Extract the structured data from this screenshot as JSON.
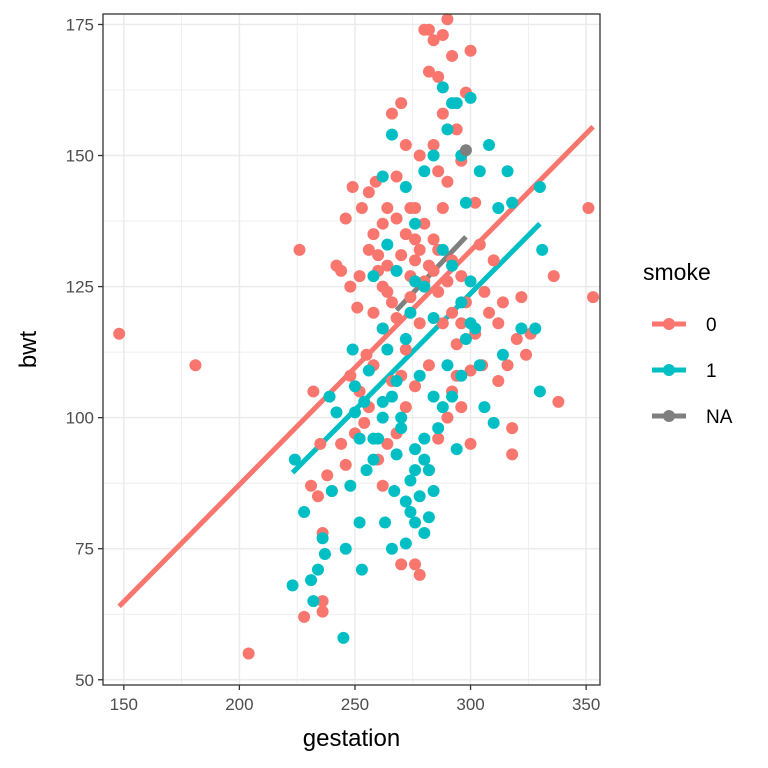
{
  "chart_data": {
    "type": "scatter",
    "xlabel": "gestation",
    "ylabel": "bwt",
    "xlim": [
      141,
      356
    ],
    "ylim": [
      49,
      177
    ],
    "x_ticks": [
      150,
      200,
      250,
      300,
      350
    ],
    "y_ticks": [
      50,
      75,
      100,
      125,
      150,
      175
    ],
    "x_tick_labels": [
      "150",
      "200",
      "250",
      "300",
      "350"
    ],
    "y_tick_labels": [
      "50",
      "75",
      "100",
      "125",
      "150",
      "175"
    ],
    "grid": true,
    "legend": {
      "title": "smoke",
      "position": "right",
      "entries": [
        {
          "label": "0",
          "color": "#F8766D"
        },
        {
          "label": "1",
          "color": "#00BFC4"
        },
        {
          "label": "NA",
          "color": "#7F7F7F"
        }
      ]
    },
    "series": [
      {
        "name": "0",
        "color": "#F8766D",
        "points": [
          [
            148,
            116
          ],
          [
            181,
            110
          ],
          [
            204,
            55
          ],
          [
            226,
            132
          ],
          [
            228,
            62
          ],
          [
            232,
            105
          ],
          [
            234,
            85
          ],
          [
            236,
            78
          ],
          [
            236,
            65
          ],
          [
            236,
            63
          ],
          [
            231,
            87
          ],
          [
            238,
            89
          ],
          [
            242,
            129
          ],
          [
            244,
            128
          ],
          [
            246,
            138
          ],
          [
            248,
            125
          ],
          [
            249,
            144
          ],
          [
            251,
            121
          ],
          [
            253,
            140
          ],
          [
            255,
            112
          ],
          [
            256,
            143
          ],
          [
            258,
            135
          ],
          [
            259,
            145
          ],
          [
            260,
            131
          ],
          [
            262,
            137
          ],
          [
            264,
            129
          ],
          [
            266,
            158
          ],
          [
            268,
            146
          ],
          [
            270,
            160
          ],
          [
            272,
            152
          ],
          [
            274,
            140
          ],
          [
            276,
            134
          ],
          [
            278,
            150
          ],
          [
            280,
            174
          ],
          [
            282,
            174
          ],
          [
            284,
            172
          ],
          [
            286,
            165
          ],
          [
            288,
            173
          ],
          [
            290,
            176
          ],
          [
            292,
            169
          ],
          [
            294,
            155
          ],
          [
            296,
            149
          ],
          [
            298,
            162
          ],
          [
            300,
            170
          ],
          [
            302,
            141
          ],
          [
            304,
            133
          ],
          [
            306,
            124
          ],
          [
            308,
            120
          ],
          [
            310,
            130
          ],
          [
            312,
            118
          ],
          [
            314,
            122
          ],
          [
            316,
            110
          ],
          [
            318,
            98
          ],
          [
            320,
            115
          ],
          [
            322,
            123
          ],
          [
            324,
            112
          ],
          [
            326,
            116
          ],
          [
            336,
            127
          ],
          [
            338,
            103
          ],
          [
            351,
            140
          ],
          [
            353,
            123
          ],
          [
            318,
            93
          ],
          [
            312,
            107
          ],
          [
            305,
            110
          ],
          [
            300,
            109
          ],
          [
            298,
            122
          ],
          [
            296,
            127
          ],
          [
            294,
            114
          ],
          [
            292,
            130
          ],
          [
            290,
            126
          ],
          [
            288,
            140
          ],
          [
            286,
            147
          ],
          [
            284,
            134
          ],
          [
            282,
            129
          ],
          [
            280,
            137
          ],
          [
            278,
            118
          ],
          [
            276,
            130
          ],
          [
            274,
            123
          ],
          [
            272,
            113
          ],
          [
            270,
            108
          ],
          [
            268,
            119
          ],
          [
            266,
            107
          ],
          [
            264,
            124
          ],
          [
            262,
            117
          ],
          [
            260,
            128
          ],
          [
            258,
            110
          ],
          [
            256,
            102
          ],
          [
            254,
            99
          ],
          [
            252,
            105
          ],
          [
            250,
            97
          ],
          [
            248,
            108
          ],
          [
            246,
            91
          ],
          [
            244,
            95
          ],
          [
            240,
            86
          ],
          [
            235,
            95
          ],
          [
            262,
            87
          ],
          [
            270,
            72
          ],
          [
            276,
            72
          ],
          [
            278,
            70
          ],
          [
            282,
            90
          ],
          [
            286,
            96
          ],
          [
            290,
            100
          ],
          [
            294,
            108
          ],
          [
            284,
            128
          ],
          [
            288,
            118
          ],
          [
            286,
            124
          ],
          [
            280,
            126
          ],
          [
            278,
            132
          ],
          [
            274,
            127
          ],
          [
            272,
            135
          ],
          [
            276,
            140
          ],
          [
            290,
            145
          ],
          [
            284,
            152
          ],
          [
            288,
            158
          ],
          [
            282,
            166
          ],
          [
            286,
            132
          ],
          [
            292,
            120
          ],
          [
            296,
            118
          ],
          [
            302,
            116
          ],
          [
            258,
            120
          ],
          [
            262,
            125
          ],
          [
            266,
            122
          ],
          [
            270,
            131
          ],
          [
            268,
            138
          ],
          [
            264,
            140
          ],
          [
            256,
            132
          ],
          [
            252,
            127
          ],
          [
            282,
            110
          ],
          [
            276,
            106
          ],
          [
            272,
            102
          ],
          [
            268,
            97
          ],
          [
            264,
            95
          ],
          [
            260,
            92
          ],
          [
            292,
            105
          ],
          [
            296,
            102
          ],
          [
            300,
            95
          ]
        ]
      },
      {
        "name": "1",
        "color": "#00BFC4",
        "points": [
          [
            223,
            68
          ],
          [
            224,
            92
          ],
          [
            228,
            82
          ],
          [
            231,
            69
          ],
          [
            232,
            65
          ],
          [
            234,
            71
          ],
          [
            236,
            77
          ],
          [
            237,
            74
          ],
          [
            239,
            104
          ],
          [
            240,
            86
          ],
          [
            242,
            101
          ],
          [
            245,
            58
          ],
          [
            246,
            75
          ],
          [
            248,
            87
          ],
          [
            249,
            113
          ],
          [
            250,
            106
          ],
          [
            252,
            80
          ],
          [
            253,
            71
          ],
          [
            255,
            90
          ],
          [
            256,
            109
          ],
          [
            258,
            92
          ],
          [
            260,
            96
          ],
          [
            262,
            103
          ],
          [
            263,
            80
          ],
          [
            264,
            113
          ],
          [
            266,
            75
          ],
          [
            267,
            86
          ],
          [
            268,
            93
          ],
          [
            270,
            100
          ],
          [
            272,
            84
          ],
          [
            274,
            82
          ],
          [
            276,
            94
          ],
          [
            278,
            108
          ],
          [
            280,
            96
          ],
          [
            282,
            90
          ],
          [
            284,
            104
          ],
          [
            286,
            98
          ],
          [
            288,
            102
          ],
          [
            290,
            110
          ],
          [
            292,
            104
          ],
          [
            294,
            94
          ],
          [
            296,
            108
          ],
          [
            298,
            115
          ],
          [
            300,
            118
          ],
          [
            302,
            117
          ],
          [
            304,
            110
          ],
          [
            306,
            102
          ],
          [
            310,
            99
          ],
          [
            314,
            112
          ],
          [
            318,
            141
          ],
          [
            322,
            117
          ],
          [
            328,
            117
          ],
          [
            330,
            144
          ],
          [
            331,
            132
          ],
          [
            330,
            105
          ],
          [
            282,
            81
          ],
          [
            276,
            90
          ],
          [
            268,
            107
          ],
          [
            262,
            117
          ],
          [
            258,
            127
          ],
          [
            262,
            146
          ],
          [
            266,
            154
          ],
          [
            272,
            144
          ],
          [
            276,
            137
          ],
          [
            280,
            147
          ],
          [
            284,
            150
          ],
          [
            288,
            163
          ],
          [
            290,
            155
          ],
          [
            292,
            160
          ],
          [
            294,
            160
          ],
          [
            296,
            150
          ],
          [
            298,
            141
          ],
          [
            300,
            161
          ],
          [
            304,
            147
          ],
          [
            308,
            152
          ],
          [
            312,
            140
          ],
          [
            316,
            147
          ],
          [
            270,
            98
          ],
          [
            274,
            88
          ],
          [
            278,
            85
          ],
          [
            280,
            92
          ],
          [
            284,
            86
          ],
          [
            274,
            120
          ],
          [
            268,
            128
          ],
          [
            264,
            133
          ],
          [
            272,
            115
          ],
          [
            276,
            126
          ],
          [
            280,
            125
          ],
          [
            284,
            119
          ],
          [
            288,
            132
          ],
          [
            292,
            129
          ],
          [
            296,
            122
          ],
          [
            300,
            126
          ],
          [
            258,
            96
          ],
          [
            262,
            100
          ],
          [
            266,
            104
          ],
          [
            254,
            103
          ],
          [
            252,
            96
          ],
          [
            250,
            101
          ],
          [
            272,
            76
          ],
          [
            276,
            80
          ],
          [
            280,
            78
          ]
        ]
      },
      {
        "name": "NA",
        "color": "#7F7F7F",
        "points": [
          [
            298,
            151
          ]
        ]
      }
    ],
    "trend_lines": [
      {
        "series": "0",
        "color": "#F8766D",
        "x": [
          148,
          353
        ],
        "y": [
          64,
          155.5
        ]
      },
      {
        "series": "1",
        "color": "#00BFC4",
        "x": [
          223,
          330
        ],
        "y": [
          89.5,
          137
        ]
      },
      {
        "series": "NA",
        "color": "#7F7F7F",
        "x": [
          268,
          298
        ],
        "y": [
          120.5,
          134.5
        ]
      }
    ]
  }
}
